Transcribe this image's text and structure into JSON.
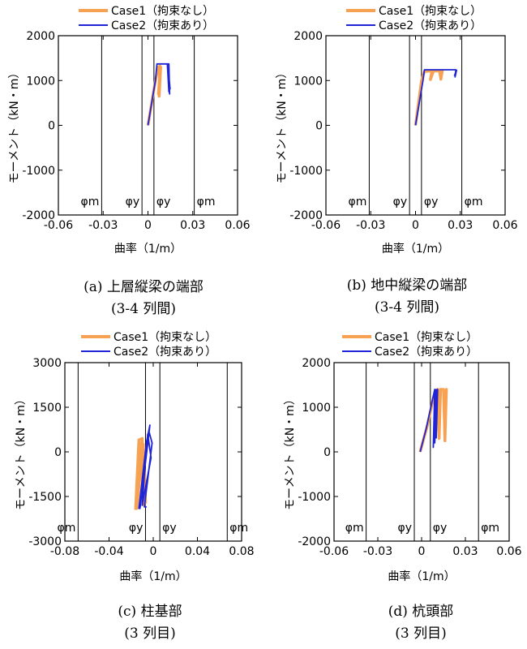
{
  "legend": [
    {
      "label": "Case1（拘束なし）",
      "color": "#f7a253"
    },
    {
      "label": "Case2（拘束あり）",
      "color": "#1f24d6"
    }
  ],
  "chart_data": [
    {
      "type": "line",
      "xlabel": "曲率（1/m）",
      "ylabel": "モーメント（kN・m）",
      "xlim": [
        -0.06,
        0.06
      ],
      "ylim": [
        -2000,
        2000
      ],
      "xticks": [
        "-0.06",
        "-0.03",
        "0",
        "0.03",
        "0.06"
      ],
      "yticks": [
        "-2000",
        "-1000",
        "0",
        "1000",
        "2000"
      ],
      "refs": [
        {
          "x": -0.031,
          "label": "φm"
        },
        {
          "x": -0.004,
          "label": "φy"
        },
        {
          "x": 0.004,
          "label": "φy"
        },
        {
          "x": 0.031,
          "label": "φm"
        }
      ],
      "series": [
        {
          "name": "Case1（拘束なし）",
          "x": [
            0,
            0.005,
            0.007,
            0.008,
            0.0075,
            0.0085,
            0.007,
            0.0082
          ],
          "y": [
            0,
            1000,
            1300,
            1320,
            650,
            1300,
            700,
            1250
          ]
        },
        {
          "name": "Case2（拘束あり）",
          "x": [
            0,
            0.005,
            0.006,
            0.014,
            0.0145,
            0.013,
            0.014,
            0.0135,
            0.0148
          ],
          "y": [
            0,
            1000,
            1370,
            1370,
            700,
            1360,
            750,
            1300,
            800
          ]
        }
      ],
      "caption": [
        "(a) 上層縦梁の端部",
        "(3-4 列間)"
      ]
    },
    {
      "type": "line",
      "xlabel": "曲率（1/m）",
      "ylabel": "モーメント（kN・m）",
      "xlim": [
        -0.06,
        0.06
      ],
      "ylim": [
        -2000,
        2000
      ],
      "xticks": [
        "-0.06",
        "-0.03",
        "0",
        "0.03",
        "0.06"
      ],
      "yticks": [
        "-2000",
        "-1000",
        "0",
        "1000",
        "2000"
      ],
      "refs": [
        {
          "x": -0.031,
          "label": "φm"
        },
        {
          "x": -0.004,
          "label": "φy"
        },
        {
          "x": 0.004,
          "label": "φy"
        },
        {
          "x": 0.031,
          "label": "φm"
        }
      ],
      "series": [
        {
          "name": "Case1（拘束なし）",
          "x": [
            0,
            0.004,
            0.006,
            0.011,
            0.01,
            0.012,
            0.016,
            0.017,
            0.018,
            0.017
          ],
          "y": [
            0,
            1000,
            1200,
            1220,
            1020,
            1210,
            1220,
            1030,
            1220,
            1050
          ]
        },
        {
          "name": "Case2（拘束あり）",
          "x": [
            0,
            0.005,
            0.006,
            0.027,
            0.0265,
            0.0275,
            0.026
          ],
          "y": [
            0,
            1000,
            1240,
            1240,
            1080,
            1230,
            1100
          ]
        }
      ],
      "caption": [
        "(b) 地中縦梁の端部",
        "(3-4 列間)"
      ]
    },
    {
      "type": "line",
      "xlabel": "曲率（1/m）",
      "ylabel": "モーメント（kN・m）",
      "xlim": [
        -0.08,
        0.08
      ],
      "ylim": [
        -3000,
        3000
      ],
      "xticks": [
        "-0.08",
        "-0.04",
        "0",
        "0.04",
        "0.08"
      ],
      "yticks": [
        "-3000",
        "-1500",
        "0",
        "1500",
        "3000"
      ],
      "refs": [
        {
          "x": -0.068,
          "label": "φm"
        },
        {
          "x": -0.007,
          "label": "φy"
        },
        {
          "x": 0.006,
          "label": "φy"
        },
        {
          "x": 0.067,
          "label": "φm"
        }
      ],
      "series": [
        {
          "name": "Case1（拘束なし）",
          "x": [
            -0.016,
            -0.013,
            -0.01,
            -0.008,
            -0.012,
            -0.015,
            -0.009,
            -0.007,
            -0.013,
            -0.016
          ],
          "y": [
            -1950,
            400,
            450,
            -1800,
            300,
            -1900,
            250,
            -1700,
            400,
            -1950
          ]
        },
        {
          "name": "Case2（拘束あり）",
          "x": [
            -0.013,
            -0.006,
            -0.003,
            -0.012,
            -0.005,
            -0.002,
            -0.01,
            -0.006,
            -0.013,
            -0.004,
            -0.001,
            -0.008,
            -0.006
          ],
          "y": [
            -1900,
            350,
            900,
            -1900,
            600,
            -200,
            -1800,
            300,
            -1900,
            700,
            300,
            -1850,
            -1850
          ]
        }
      ],
      "caption": [
        "(c) 柱基部",
        "(3 列目)"
      ]
    },
    {
      "type": "line",
      "xlabel": "曲率（1/m）",
      "ylabel": "モーメント（kN・m）",
      "xlim": [
        -0.06,
        0.06
      ],
      "ylim": [
        -2000,
        2000
      ],
      "xticks": [
        "-0.06",
        "-0.03",
        "0",
        "0.03",
        "0.06"
      ],
      "yticks": [
        "-2000",
        "-1000",
        "0",
        "1000",
        "2000"
      ],
      "refs": [
        {
          "x": -0.038,
          "label": "φm"
        },
        {
          "x": -0.005,
          "label": "φy"
        },
        {
          "x": 0.006,
          "label": "φy"
        },
        {
          "x": 0.039,
          "label": "φm"
        }
      ],
      "series": [
        {
          "name": "Case1（拘束なし）",
          "x": [
            -0.001,
            0.004,
            0.008,
            0.011,
            0.012,
            0.013,
            0.015,
            0.016,
            0.017,
            0.016
          ],
          "y": [
            0,
            600,
            1200,
            1400,
            300,
            1400,
            1400,
            250,
            1400,
            250
          ]
        },
        {
          "name": "Case2（拘束あり）",
          "x": [
            -0.001,
            0.003,
            0.007,
            0.009,
            0.008,
            0.01,
            0.009,
            0.011,
            0.01
          ],
          "y": [
            0,
            500,
            1100,
            1400,
            100,
            1400,
            200,
            1400,
            300
          ]
        }
      ],
      "caption": [
        "(d) 杭頭部",
        "(3 列目)"
      ]
    }
  ]
}
